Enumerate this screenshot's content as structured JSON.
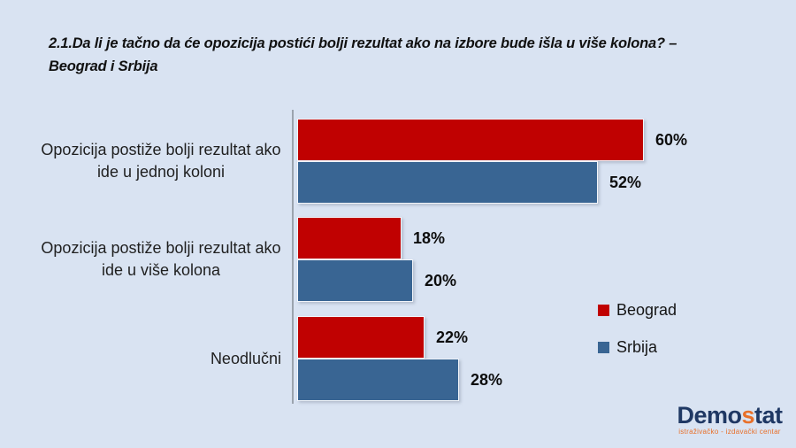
{
  "header": {
    "title_line1": "2.1.Da li je tačno da će opozicija postići bolji rezultat ako na izbore bude išla u više kolona? –",
    "title_line2": "Beograd i Srbija"
  },
  "chart_data": {
    "type": "bar",
    "orientation": "horizontal",
    "title": "2.1.Da li je tačno da će opozicija postići bolji rezultat ako na izbore bude išla u više kolona? – Beograd i Srbija",
    "categories": [
      "Opozicija postiže bolji rezultat ako ide u jednoj koloni",
      "Opozicija postiže bolji rezultat ako ide u više kolona",
      "Neodlučni"
    ],
    "series": [
      {
        "name": "Beograd",
        "color": "#C00101",
        "values": [
          60,
          18,
          22
        ]
      },
      {
        "name": "Srbija",
        "color": "#396593",
        "values": [
          52,
          20,
          28
        ]
      }
    ],
    "value_suffix": "%",
    "data_labels": true,
    "value_axis_visible": false,
    "legend_position": "center-right"
  },
  "logo": {
    "text_prefix": "Demo",
    "text_accent": "s",
    "text_suffix": "tat",
    "subtitle": "istraživačko - izdavački centar"
  },
  "colors": {
    "background": "#D9E3F2",
    "axis_line": "#9BA3AE",
    "beograd_red": "#C00101",
    "srbija_blue": "#396593",
    "logo_navy": "#1F3864",
    "logo_orange": "#E8702A"
  }
}
